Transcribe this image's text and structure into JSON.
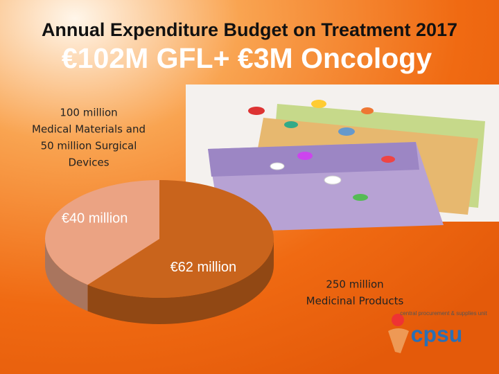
{
  "chart_data": {
    "type": "pie",
    "title": "Annual Expenditure Budget on Treatment 2017",
    "subtitle": "€102M GFL+ €3M Oncology",
    "categories": [
      null,
      null
    ],
    "values": [
      40,
      62
    ],
    "value_labels": [
      "€40 million",
      "€62 million"
    ],
    "colors": [
      "#eba383",
      "#c9641c"
    ],
    "annotations": [
      [
        "100 million",
        "Medical Materials and",
        "50 million Surgical",
        "Devices"
      ],
      [
        "250 million",
        "Medicinal Products"
      ]
    ]
  },
  "logo": {
    "name": "cpsu",
    "tagline": "central procurement & supplies unit"
  }
}
